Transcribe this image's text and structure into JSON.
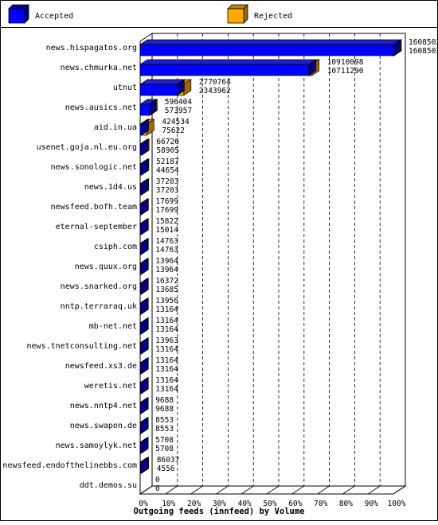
{
  "chart_data": {
    "type": "bar",
    "orientation": "horizontal",
    "style": "3d",
    "title": "Outgoing feeds (innfeed) by Volume",
    "xlabel": "",
    "ylabel": "",
    "xlim": [
      0,
      100
    ],
    "x_tick_labels": [
      "0%",
      "10%",
      "20%",
      "30%",
      "40%",
      "50%",
      "60%",
      "70%",
      "80%",
      "90%",
      "100%"
    ],
    "grid": "dashed vertical",
    "legend_position": "top",
    "categories": [
      "news.hispagatos.org",
      "news.chmurka.net",
      "utnut",
      "news.ausics.net",
      "aid.in.ua",
      "usenet.goja.nl.eu.org",
      "news.sonologic.net",
      "news.1d4.us",
      "newsfeed.bofh.team",
      "eternal-september",
      "csiph.com",
      "news.quux.org",
      "news.snarked.org",
      "nntp.terraraq.uk",
      "mb-net.net",
      "news.tnetconsulting.net",
      "newsfeed.xs3.de",
      "weretis.net",
      "news.nntp4.net",
      "news.swapon.de",
      "news.samoylyk.net",
      "newsfeed.endofthelinebbs.com",
      "ddt.demos.su"
    ],
    "series": [
      {
        "name": "Accepted",
        "color": "#0000ff",
        "values": [
          16085032,
          10711290,
          2343962,
          573957,
          75622,
          58905,
          44654,
          37203,
          17699,
          15014,
          14763,
          13964,
          13685,
          13164,
          13164,
          13164,
          13164,
          13164,
          9688,
          8553,
          5708,
          4556,
          0
        ]
      },
      {
        "name": "Rejected",
        "color": "#ffaa00",
        "values": [
          16085032,
          10910098,
          2770764,
          596404,
          424534,
          66726,
          52187,
          37203,
          17699,
          15822,
          14763,
          13964,
          16372,
          13956,
          13164,
          13963,
          13164,
          13164,
          9688,
          8553,
          5708,
          86037,
          0
        ]
      }
    ],
    "value_labels": [
      [
        "16085032",
        "16085032"
      ],
      [
        "10910098",
        "10711290"
      ],
      [
        "2770764",
        "2343962"
      ],
      [
        "596404",
        "573957"
      ],
      [
        "424534",
        "75622"
      ],
      [
        "66726",
        "58905"
      ],
      [
        "52187",
        "44654"
      ],
      [
        "37203",
        "37203"
      ],
      [
        "17699",
        "17699"
      ],
      [
        "15822",
        "15014"
      ],
      [
        "14763",
        "14763"
      ],
      [
        "13964",
        "13964"
      ],
      [
        "16372",
        "13685"
      ],
      [
        "13956",
        "13164"
      ],
      [
        "13164",
        "13164"
      ],
      [
        "13963",
        "13164"
      ],
      [
        "13164",
        "13164"
      ],
      [
        "13164",
        "13164"
      ],
      [
        "9688",
        "9688"
      ],
      [
        "8553",
        "8553"
      ],
      [
        "5708",
        "5708"
      ],
      [
        "86037",
        "4556"
      ],
      [
        "0",
        "0"
      ]
    ]
  }
}
